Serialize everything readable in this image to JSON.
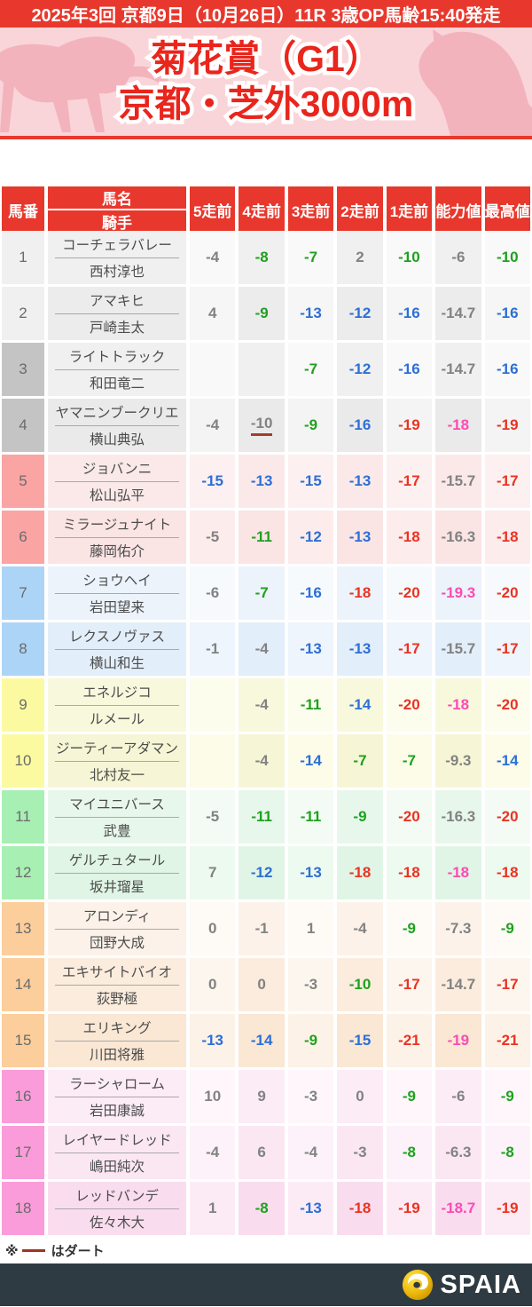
{
  "topbar": {
    "text": "2025年3回 京都9日（10月26日）11R 3歳OP馬齢15:40発走"
  },
  "hero": {
    "title_line1": "菊花賞（G1）",
    "title_line2": "京都・芝外3000m"
  },
  "colors": {
    "accent_red": "#e8382d",
    "hero_pink": "#f9d5d9",
    "silhouette_pink": "#f3b3bc",
    "value_gray": "#828282",
    "value_green": "#1ea11e",
    "value_blue": "#2d6fd6",
    "value_red": "#ea3323",
    "value_pink": "#fc4bb3",
    "dirt_line": "#a63c28",
    "footer_bg": "#2e3b42",
    "logo_gold": "#e8b007"
  },
  "table": {
    "headers": {
      "umaban": "馬番",
      "bamei": "馬名",
      "kishu": "騎手",
      "cols": [
        "5走前",
        "4走前",
        "3走前",
        "2走前",
        "1走前",
        "能力値",
        "最高値"
      ]
    },
    "rows": [
      {
        "num": "1",
        "bracket": "white",
        "num_bg": "#f0f0f0",
        "bg_light": "#f9f9f9",
        "bg_dark": "#f0f0f0",
        "horse": "コーチェラバレー",
        "jockey": "西村淳也",
        "values": [
          {
            "t": "-4",
            "c": "gray"
          },
          {
            "t": "-8",
            "c": "green"
          },
          {
            "t": "-7",
            "c": "green"
          },
          {
            "t": "2",
            "c": "gray"
          },
          {
            "t": "-10",
            "c": "green"
          },
          {
            "t": "-6",
            "c": "gray"
          },
          {
            "t": "-10",
            "c": "green"
          }
        ]
      },
      {
        "num": "2",
        "bracket": "white",
        "num_bg": "#f0f0f0",
        "bg_light": "#f6f6f6",
        "bg_dark": "#ececec",
        "horse": "アマキヒ",
        "jockey": "戸崎圭太",
        "values": [
          {
            "t": "4",
            "c": "gray"
          },
          {
            "t": "-9",
            "c": "green"
          },
          {
            "t": "-13",
            "c": "blue"
          },
          {
            "t": "-12",
            "c": "blue"
          },
          {
            "t": "-16",
            "c": "blue"
          },
          {
            "t": "-14.7",
            "c": "gray"
          },
          {
            "t": "-16",
            "c": "blue"
          }
        ]
      },
      {
        "num": "3",
        "bracket": "black",
        "num_bg": "#c4c4c4",
        "bg_light": "#f9f9f9",
        "bg_dark": "#f0f0f0",
        "horse": "ライトトラック",
        "jockey": "和田竜二",
        "values": [
          {
            "t": "",
            "c": "gray"
          },
          {
            "t": "",
            "c": "gray"
          },
          {
            "t": "-7",
            "c": "green"
          },
          {
            "t": "-12",
            "c": "blue"
          },
          {
            "t": "-16",
            "c": "blue"
          },
          {
            "t": "-14.7",
            "c": "gray"
          },
          {
            "t": "-16",
            "c": "blue"
          }
        ]
      },
      {
        "num": "4",
        "bracket": "black",
        "num_bg": "#c4c4c4",
        "bg_light": "#f4f4f4",
        "bg_dark": "#eaeaea",
        "horse": "ヤマニンブークリエ",
        "jockey": "横山典弘",
        "values": [
          {
            "t": "-4",
            "c": "gray"
          },
          {
            "t": "-10",
            "c": "gray",
            "dirt": true
          },
          {
            "t": "-9",
            "c": "green"
          },
          {
            "t": "-16",
            "c": "blue"
          },
          {
            "t": "-19",
            "c": "red"
          },
          {
            "t": "-18",
            "c": "pink"
          },
          {
            "t": "-19",
            "c": "red"
          }
        ]
      },
      {
        "num": "5",
        "bracket": "red",
        "num_bg": "#fba4a4",
        "bg_light": "#fdf0f0",
        "bg_dark": "#fbe9e9",
        "horse": "ジョバンニ",
        "jockey": "松山弘平",
        "values": [
          {
            "t": "-15",
            "c": "blue"
          },
          {
            "t": "-13",
            "c": "blue"
          },
          {
            "t": "-15",
            "c": "blue"
          },
          {
            "t": "-13",
            "c": "blue"
          },
          {
            "t": "-17",
            "c": "red"
          },
          {
            "t": "-15.7",
            "c": "gray"
          },
          {
            "t": "-17",
            "c": "red"
          }
        ]
      },
      {
        "num": "6",
        "bracket": "red",
        "num_bg": "#fba4a4",
        "bg_light": "#fdecec",
        "bg_dark": "#fbe4e4",
        "horse": "ミラージュナイト",
        "jockey": "藤岡佑介",
        "values": [
          {
            "t": "-5",
            "c": "gray"
          },
          {
            "t": "-11",
            "c": "green"
          },
          {
            "t": "-12",
            "c": "blue"
          },
          {
            "t": "-13",
            "c": "blue"
          },
          {
            "t": "-18",
            "c": "red"
          },
          {
            "t": "-16.3",
            "c": "gray"
          },
          {
            "t": "-18",
            "c": "red"
          }
        ]
      },
      {
        "num": "7",
        "bracket": "blue",
        "num_bg": "#abd4f7",
        "bg_light": "#f6fafd",
        "bg_dark": "#ecf3fb",
        "horse": "ショウヘイ",
        "jockey": "岩田望来",
        "values": [
          {
            "t": "-6",
            "c": "gray"
          },
          {
            "t": "-7",
            "c": "green"
          },
          {
            "t": "-16",
            "c": "blue"
          },
          {
            "t": "-18",
            "c": "red"
          },
          {
            "t": "-20",
            "c": "red"
          },
          {
            "t": "-19.3",
            "c": "pink"
          },
          {
            "t": "-20",
            "c": "red"
          }
        ]
      },
      {
        "num": "8",
        "bracket": "blue",
        "num_bg": "#abd4f7",
        "bg_light": "#eef5fc",
        "bg_dark": "#e2eef9",
        "horse": "レクスノヴァス",
        "jockey": "横山和生",
        "values": [
          {
            "t": "-1",
            "c": "gray"
          },
          {
            "t": "-4",
            "c": "gray"
          },
          {
            "t": "-13",
            "c": "blue"
          },
          {
            "t": "-13",
            "c": "blue"
          },
          {
            "t": "-17",
            "c": "red"
          },
          {
            "t": "-15.7",
            "c": "gray"
          },
          {
            "t": "-17",
            "c": "red"
          }
        ]
      },
      {
        "num": "9",
        "bracket": "yellow",
        "num_bg": "#fcfaa1",
        "bg_light": "#fdfdee",
        "bg_dark": "#f8f8dd",
        "horse": "エネルジコ",
        "jockey": "ルメール",
        "values": [
          {
            "t": "",
            "c": "gray"
          },
          {
            "t": "-4",
            "c": "gray"
          },
          {
            "t": "-11",
            "c": "green"
          },
          {
            "t": "-14",
            "c": "blue"
          },
          {
            "t": "-20",
            "c": "red"
          },
          {
            "t": "-18",
            "c": "pink"
          },
          {
            "t": "-20",
            "c": "red"
          }
        ]
      },
      {
        "num": "10",
        "bracket": "yellow",
        "num_bg": "#fcfaa1",
        "bg_light": "#fcfce8",
        "bg_dark": "#f6f6d6",
        "horse": "ジーティーアダマン",
        "jockey": "北村友一",
        "values": [
          {
            "t": "",
            "c": "gray"
          },
          {
            "t": "-4",
            "c": "gray"
          },
          {
            "t": "-14",
            "c": "blue"
          },
          {
            "t": "-7",
            "c": "green"
          },
          {
            "t": "-7",
            "c": "green"
          },
          {
            "t": "-9.3",
            "c": "gray"
          },
          {
            "t": "-14",
            "c": "blue"
          }
        ]
      },
      {
        "num": "11",
        "bracket": "green",
        "num_bg": "#a8efb3",
        "bg_light": "#f3fbf4",
        "bg_dark": "#e8f7eb",
        "horse": "マイユニバース",
        "jockey": "武豊",
        "values": [
          {
            "t": "-5",
            "c": "gray"
          },
          {
            "t": "-11",
            "c": "green"
          },
          {
            "t": "-11",
            "c": "green"
          },
          {
            "t": "-9",
            "c": "green"
          },
          {
            "t": "-20",
            "c": "red"
          },
          {
            "t": "-16.3",
            "c": "gray"
          },
          {
            "t": "-20",
            "c": "red"
          }
        ]
      },
      {
        "num": "12",
        "bracket": "green",
        "num_bg": "#a8efb3",
        "bg_light": "#edfaef",
        "bg_dark": "#e0f5e5",
        "horse": "ゲルチュタール",
        "jockey": "坂井瑠星",
        "values": [
          {
            "t": "7",
            "c": "gray"
          },
          {
            "t": "-12",
            "c": "blue"
          },
          {
            "t": "-13",
            "c": "blue"
          },
          {
            "t": "-18",
            "c": "red"
          },
          {
            "t": "-18",
            "c": "red"
          },
          {
            "t": "-18",
            "c": "pink"
          },
          {
            "t": "-18",
            "c": "red"
          }
        ]
      },
      {
        "num": "13",
        "bracket": "orange",
        "num_bg": "#fcce9b",
        "bg_light": "#fefaf6",
        "bg_dark": "#fcf2e9",
        "horse": "アロンディ",
        "jockey": "団野大成",
        "values": [
          {
            "t": "0",
            "c": "gray"
          },
          {
            "t": "-1",
            "c": "gray"
          },
          {
            "t": "1",
            "c": "gray"
          },
          {
            "t": "-4",
            "c": "gray"
          },
          {
            "t": "-9",
            "c": "green"
          },
          {
            "t": "-7.3",
            "c": "gray"
          },
          {
            "t": "-9",
            "c": "green"
          }
        ]
      },
      {
        "num": "14",
        "bracket": "orange",
        "num_bg": "#fcce9b",
        "bg_light": "#fdf6ee",
        "bg_dark": "#fbecdd",
        "horse": "エキサイトバイオ",
        "jockey": "荻野極",
        "values": [
          {
            "t": "0",
            "c": "gray"
          },
          {
            "t": "0",
            "c": "gray"
          },
          {
            "t": "-3",
            "c": "gray"
          },
          {
            "t": "-10",
            "c": "green"
          },
          {
            "t": "-17",
            "c": "red"
          },
          {
            "t": "-14.7",
            "c": "gray"
          },
          {
            "t": "-17",
            "c": "red"
          }
        ]
      },
      {
        "num": "15",
        "bracket": "orange",
        "num_bg": "#fcce9b",
        "bg_light": "#fdf2e7",
        "bg_dark": "#fae7d4",
        "horse": "エリキング",
        "jockey": "川田将雅",
        "values": [
          {
            "t": "-13",
            "c": "blue"
          },
          {
            "t": "-14",
            "c": "blue"
          },
          {
            "t": "-9",
            "c": "green"
          },
          {
            "t": "-15",
            "c": "blue"
          },
          {
            "t": "-21",
            "c": "red"
          },
          {
            "t": "-19",
            "c": "pink"
          },
          {
            "t": "-21",
            "c": "red"
          }
        ]
      },
      {
        "num": "16",
        "bracket": "pink",
        "num_bg": "#fb9cda",
        "bg_light": "#fef6fb",
        "bg_dark": "#fcecf6",
        "horse": "ラーシャローム",
        "jockey": "岩田康誠",
        "values": [
          {
            "t": "10",
            "c": "gray"
          },
          {
            "t": "9",
            "c": "gray"
          },
          {
            "t": "-3",
            "c": "gray"
          },
          {
            "t": "0",
            "c": "gray"
          },
          {
            "t": "-9",
            "c": "green"
          },
          {
            "t": "-6",
            "c": "gray"
          },
          {
            "t": "-9",
            "c": "green"
          }
        ]
      },
      {
        "num": "17",
        "bracket": "pink",
        "num_bg": "#fb9cda",
        "bg_light": "#fdf2f9",
        "bg_dark": "#fbe7f2",
        "horse": "レイヤードレッド",
        "jockey": "嶋田純次",
        "values": [
          {
            "t": "-4",
            "c": "gray"
          },
          {
            "t": "6",
            "c": "gray"
          },
          {
            "t": "-4",
            "c": "gray"
          },
          {
            "t": "-3",
            "c": "gray"
          },
          {
            "t": "-8",
            "c": "green"
          },
          {
            "t": "-6.3",
            "c": "gray"
          },
          {
            "t": "-8",
            "c": "green"
          }
        ]
      },
      {
        "num": "18",
        "bracket": "pink",
        "num_bg": "#fb9cda",
        "bg_light": "#fcebf5",
        "bg_dark": "#f9ddee",
        "horse": "レッドバンデ",
        "jockey": "佐々木大",
        "values": [
          {
            "t": "1",
            "c": "gray"
          },
          {
            "t": "-8",
            "c": "green"
          },
          {
            "t": "-13",
            "c": "blue"
          },
          {
            "t": "-18",
            "c": "red"
          },
          {
            "t": "-19",
            "c": "red"
          },
          {
            "t": "-18.7",
            "c": "pink"
          },
          {
            "t": "-19",
            "c": "red"
          }
        ]
      }
    ]
  },
  "legend": {
    "prefix": "※",
    "suffix": "はダート"
  },
  "footer": {
    "brand": "SPAIA"
  }
}
